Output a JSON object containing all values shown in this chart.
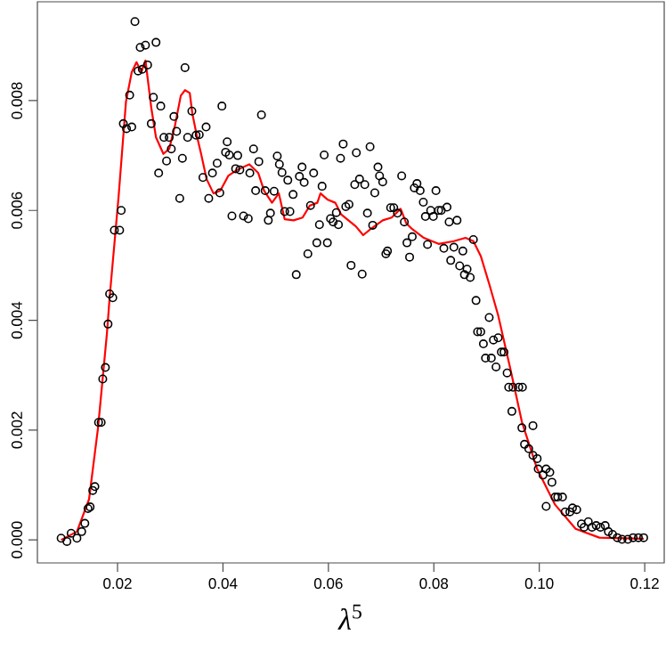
{
  "chart_data": {
    "type": "scatter",
    "xlabel": "*λ*$^{5}$",
    "xlim": [
      0.0048,
      0.1237
    ],
    "ylim": [
      -0.00042,
      0.0098
    ],
    "xticks": [
      {
        "value": 0.02,
        "label": "0.02"
      },
      {
        "value": 0.04,
        "label": "0.04"
      },
      {
        "value": 0.06,
        "label": "0.06"
      },
      {
        "value": 0.08,
        "label": "0.08"
      },
      {
        "value": 0.1,
        "label": "0.10"
      },
      {
        "value": 0.12,
        "label": "0.12"
      }
    ],
    "yticks": [
      {
        "value": 0,
        "label": "0.000"
      },
      {
        "value": 0.002,
        "label": "0.002"
      },
      {
        "value": 0.004,
        "label": "0.004"
      },
      {
        "value": 0.006,
        "label": "0.006"
      },
      {
        "value": 0.008,
        "label": "0.008"
      }
    ],
    "grid": false,
    "series": [
      {
        "marker": "circle",
        "color": "#000000",
        "x": [
          0.0093,
          0.0104,
          0.0112,
          0.0123,
          0.0132,
          0.0138,
          0.0144,
          0.0148,
          0.0153,
          0.0157,
          0.0164,
          0.0169,
          0.0172,
          0.0177,
          0.0182,
          0.0185,
          0.0191,
          0.0194,
          0.0204,
          0.0207,
          0.0211,
          0.0217,
          0.0227,
          0.0223,
          0.0239,
          0.0247,
          0.0257,
          0.0233,
          0.0243,
          0.0253,
          0.0273,
          0.0264,
          0.0268,
          0.0282,
          0.0278,
          0.0288,
          0.0293,
          0.0298,
          0.0302,
          0.0307,
          0.0312,
          0.0318,
          0.0323,
          0.0328,
          0.0333,
          0.0341,
          0.0349,
          0.0355,
          0.0362,
          0.0368,
          0.0373,
          0.038,
          0.0389,
          0.0394,
          0.0398,
          0.0405,
          0.0408,
          0.0412,
          0.0417,
          0.0424,
          0.0428,
          0.0432,
          0.0439,
          0.0448,
          0.0451,
          0.0458,
          0.0462,
          0.0468,
          0.0473,
          0.048,
          0.0486,
          0.049,
          0.0497,
          0.0503,
          0.0507,
          0.0512,
          0.0517,
          0.0523,
          0.0527,
          0.0533,
          0.0539,
          0.0545,
          0.055,
          0.0554,
          0.0561,
          0.0566,
          0.0572,
          0.0578,
          0.0583,
          0.0588,
          0.0592,
          0.0598,
          0.0604,
          0.0609,
          0.0615,
          0.0619,
          0.0623,
          0.0628,
          0.0633,
          0.0639,
          0.0643,
          0.065,
          0.0653,
          0.0659,
          0.0664,
          0.0669,
          0.0674,
          0.0679,
          0.0684,
          0.0688,
          0.0694,
          0.0697,
          0.0703,
          0.0709,
          0.0712,
          0.0718,
          0.0724,
          0.0731,
          0.0739,
          0.0744,
          0.0749,
          0.0754,
          0.0759,
          0.0763,
          0.0768,
          0.0774,
          0.078,
          0.0784,
          0.0788,
          0.0794,
          0.0799,
          0.0804,
          0.0809,
          0.0814,
          0.0819,
          0.0825,
          0.0829,
          0.0832,
          0.0838,
          0.0844,
          0.0849,
          0.0855,
          0.0858,
          0.0863,
          0.0869,
          0.0875,
          0.088,
          0.0883,
          0.0889,
          0.0894,
          0.0898,
          0.0905,
          0.0909,
          0.0913,
          0.0918,
          0.0922,
          0.0928,
          0.0933,
          0.0939,
          0.0942,
          0.0948,
          0.095,
          0.0961,
          0.0967,
          0.0968,
          0.0972,
          0.098,
          0.0988,
          0.0988,
          0.0996,
          0.0998,
          0.1007,
          0.1013,
          0.1013,
          0.102,
          0.1024,
          0.103,
          0.1035,
          0.1044,
          0.1049,
          0.1058,
          0.1063,
          0.1071,
          0.108,
          0.1085,
          0.1093,
          0.11,
          0.1108,
          0.1116,
          0.1125,
          0.1131,
          0.1139,
          0.1148,
          0.1157,
          0.1168,
          0.1178,
          0.1188,
          0.1198
        ],
        "values": [
          3e-05,
          -3e-05,
          0.00012,
          3e-05,
          0.00015,
          0.0003,
          0.00057,
          0.0006,
          0.0009,
          0.00097,
          0.00214,
          0.00214,
          0.00293,
          0.00314,
          0.00393,
          0.00448,
          0.00441,
          0.00564,
          0.00564,
          0.006,
          0.00758,
          0.00749,
          0.00752,
          0.0081,
          0.00854,
          0.00857,
          0.00865,
          0.00944,
          0.00897,
          0.00901,
          0.00906,
          0.00758,
          0.00806,
          0.0079,
          0.00668,
          0.00733,
          0.0069,
          0.00733,
          0.00712,
          0.00771,
          0.00744,
          0.00622,
          0.00695,
          0.0086,
          0.00733,
          0.00781,
          0.00737,
          0.00738,
          0.0066,
          0.00752,
          0.00622,
          0.00668,
          0.00686,
          0.00632,
          0.0079,
          0.00706,
          0.00725,
          0.00701,
          0.0059,
          0.00676,
          0.007,
          0.00674,
          0.0059,
          0.00585,
          0.00668,
          0.00712,
          0.00636,
          0.00689,
          0.00774,
          0.00636,
          0.00582,
          0.00595,
          0.00635,
          0.00699,
          0.00684,
          0.00669,
          0.00598,
          0.00655,
          0.00598,
          0.00629,
          0.00483,
          0.00662,
          0.00679,
          0.00651,
          0.00521,
          0.00609,
          0.00668,
          0.00541,
          0.00574,
          0.00644,
          0.00701,
          0.00541,
          0.00585,
          0.00579,
          0.00596,
          0.00574,
          0.00695,
          0.00721,
          0.00607,
          0.00611,
          0.005,
          0.00647,
          0.00705,
          0.00657,
          0.00484,
          0.00647,
          0.00595,
          0.00716,
          0.00573,
          0.00632,
          0.00679,
          0.00663,
          0.00652,
          0.00521,
          0.00526,
          0.00605,
          0.00605,
          0.00595,
          0.00663,
          0.00579,
          0.00541,
          0.00515,
          0.00552,
          0.00641,
          0.00649,
          0.00636,
          0.00615,
          0.00589,
          0.00538,
          0.006,
          0.00589,
          0.00636,
          0.006,
          0.006,
          0.00531,
          0.00606,
          0.00579,
          0.00509,
          0.00533,
          0.00582,
          0.00499,
          0.00526,
          0.00483,
          0.00493,
          0.00478,
          0.00547,
          0.00436,
          0.00379,
          0.00379,
          0.00357,
          0.00331,
          0.00405,
          0.00331,
          0.00364,
          0.00315,
          0.00368,
          0.00342,
          0.00342,
          0.00304,
          0.00278,
          0.00234,
          0.00278,
          0.00278,
          0.00204,
          0.00278,
          0.00174,
          0.00166,
          0.00154,
          0.00208,
          0.00148,
          0.00129,
          0.00118,
          0.00129,
          0.00061,
          0.00123,
          0.00105,
          0.00078,
          0.00078,
          0.00078,
          0.00051,
          0.00051,
          0.00058,
          0.00055,
          0.00029,
          0.00023,
          0.00033,
          0.00023,
          0.00026,
          0.00023,
          0.00026,
          0.00015,
          0.0001,
          4e-05,
          1e-05,
          1e-05,
          4e-05,
          4e-05,
          4e-05
        ]
      },
      {
        "type": "line",
        "marker": "none",
        "line_style": "solid",
        "color": "#ff0000",
        "x": [
          0.0093,
          0.0123,
          0.0146,
          0.0163,
          0.018,
          0.0185,
          0.0202,
          0.0216,
          0.0227,
          0.0236,
          0.0245,
          0.0253,
          0.0264,
          0.0273,
          0.0287,
          0.0298,
          0.0309,
          0.032,
          0.0328,
          0.0337,
          0.0342,
          0.035,
          0.0359,
          0.0369,
          0.0382,
          0.0395,
          0.041,
          0.0427,
          0.045,
          0.0467,
          0.0478,
          0.0493,
          0.0506,
          0.0517,
          0.0534,
          0.0551,
          0.0565,
          0.0579,
          0.0585,
          0.0598,
          0.0613,
          0.0624,
          0.0652,
          0.0666,
          0.068,
          0.0703,
          0.072,
          0.0737,
          0.0748,
          0.0759,
          0.0781,
          0.0809,
          0.0838,
          0.086,
          0.0875,
          0.0889,
          0.0906,
          0.0922,
          0.0945,
          0.0967,
          0.0996,
          0.103,
          0.1069,
          0.1114,
          0.1198
        ],
        "values": [
          0.0,
          0.00015,
          0.00074,
          0.00204,
          0.00377,
          0.00441,
          0.00625,
          0.00798,
          0.00852,
          0.0087,
          0.00852,
          0.00873,
          0.00787,
          0.00733,
          0.00703,
          0.00712,
          0.00755,
          0.00809,
          0.00819,
          0.00814,
          0.00776,
          0.00738,
          0.00701,
          0.00657,
          0.00631,
          0.00636,
          0.00663,
          0.00674,
          0.00684,
          0.00668,
          0.00636,
          0.00614,
          0.00631,
          0.00584,
          0.00582,
          0.00587,
          0.00609,
          0.00614,
          0.00631,
          0.0062,
          0.00614,
          0.00593,
          0.00571,
          0.00555,
          0.00566,
          0.00582,
          0.00587,
          0.00603,
          0.00576,
          0.00566,
          0.0055,
          0.00539,
          0.00544,
          0.0055,
          0.00544,
          0.00517,
          0.00463,
          0.00409,
          0.00312,
          0.00215,
          0.00129,
          0.00064,
          0.0002,
          4e-05,
          2e-05
        ]
      }
    ]
  }
}
